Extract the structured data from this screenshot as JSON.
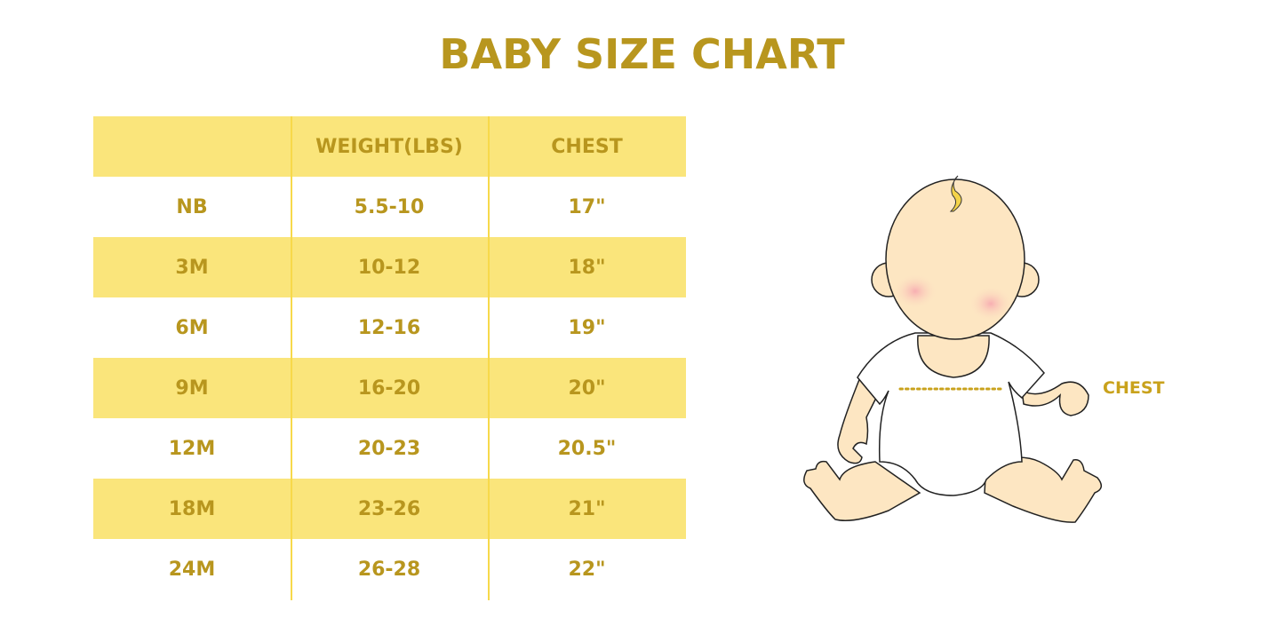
{
  "title": "BABY SIZE CHART",
  "table": {
    "headers": [
      "",
      "WEIGHT(LBS)",
      "CHEST"
    ],
    "rows": [
      [
        "NB",
        "5.5-10",
        "17\""
      ],
      [
        "3M",
        "10-12",
        "18\""
      ],
      [
        "6M",
        "12-16",
        "19\""
      ],
      [
        "9M",
        "16-20",
        "20\""
      ],
      [
        "12M",
        "20-23",
        "20.5\""
      ],
      [
        "18M",
        "23-26",
        "21\""
      ],
      [
        "24M",
        "26-28",
        "22\""
      ]
    ]
  },
  "illustration": {
    "chest_label": "CHEST",
    "icon": "baby-illustration"
  },
  "colors": {
    "text": "#b8961e",
    "stripe": "#fae57b",
    "divider": "#f7d94a"
  }
}
